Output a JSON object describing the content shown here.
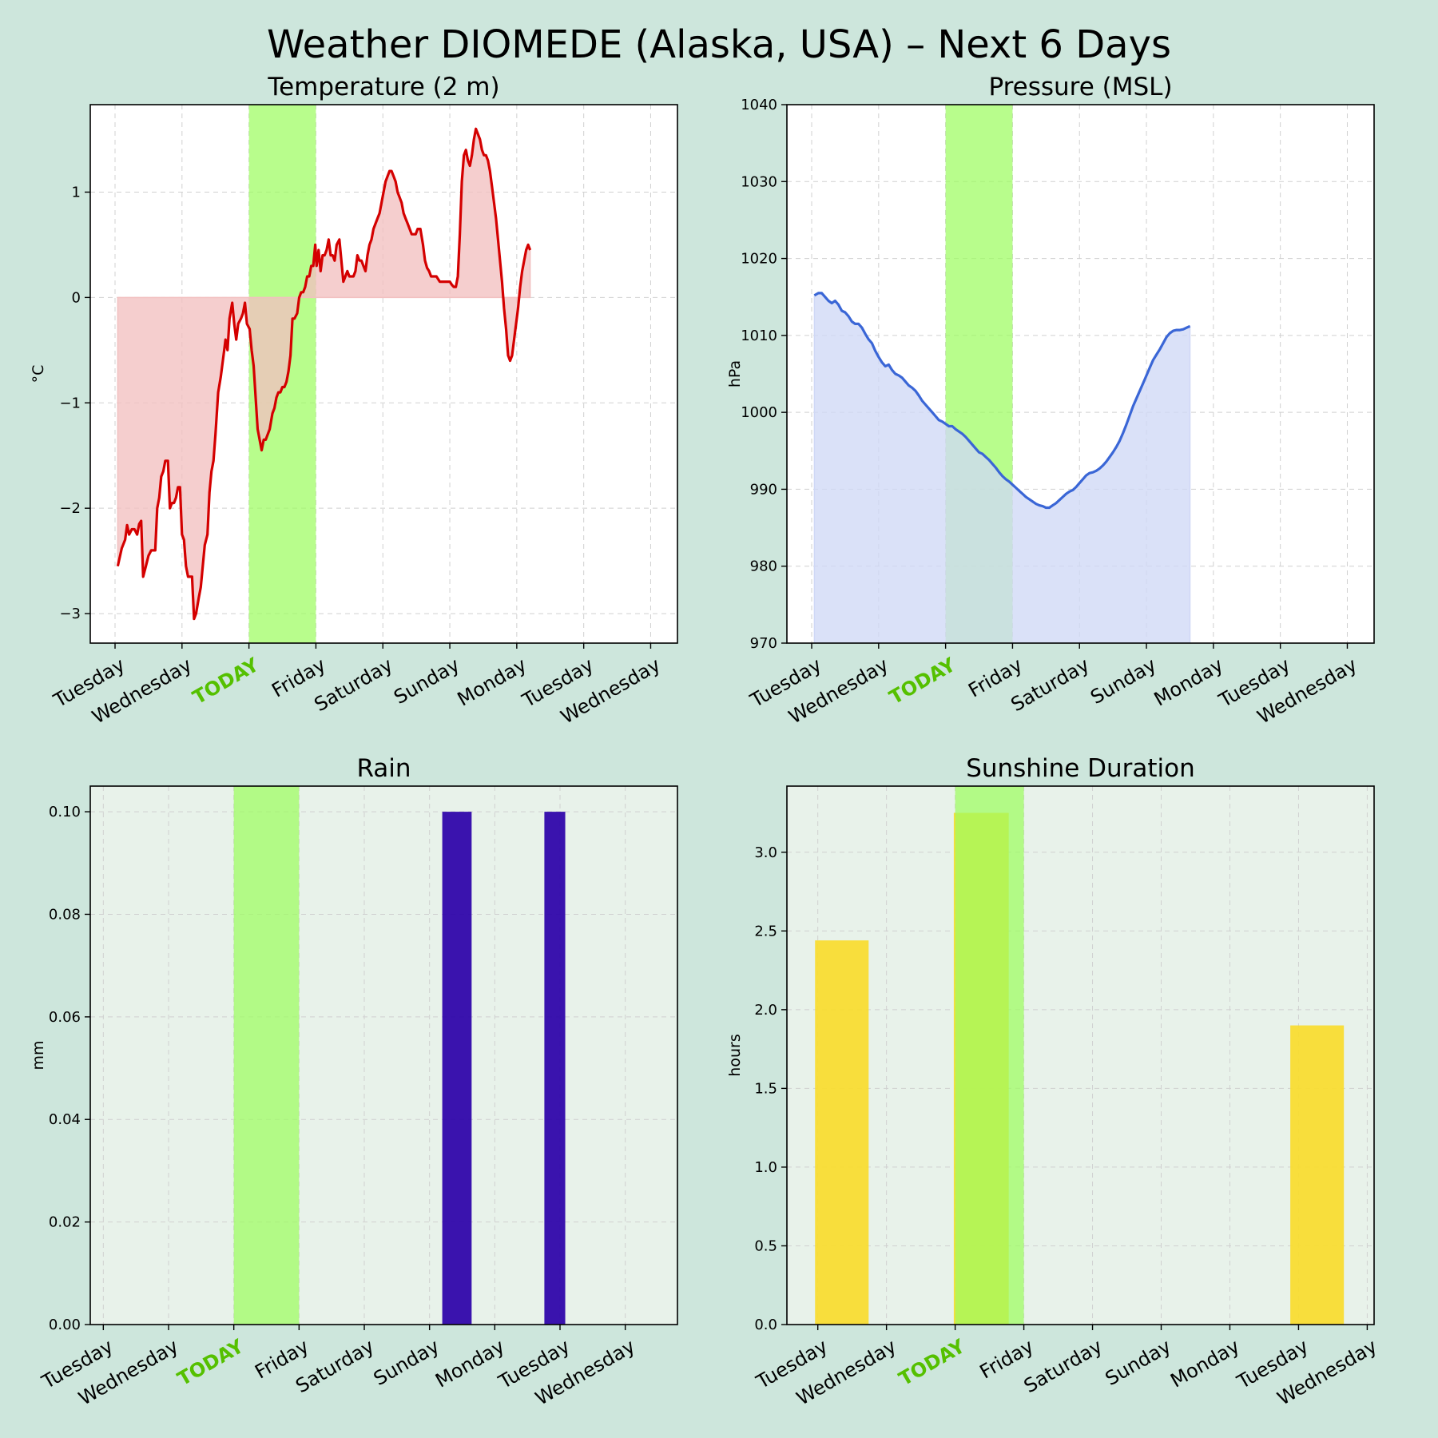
{
  "title": "Weather DIOMEDE (Alaska, USA) – Next 6 Days",
  "chart_data": [
    {
      "type": "line",
      "title": "Temperature (2 m)",
      "ylabel": "°C",
      "xlim": [
        -0.37,
        8.4
      ],
      "ylim": [
        -3.28,
        1.83
      ],
      "yticks": [
        -3,
        -2,
        -1,
        0,
        1
      ],
      "ytick_labels": [
        "−3",
        "−2",
        "−1",
        "0",
        "1"
      ],
      "day_ticks": [
        "Tuesday",
        "Wednesday",
        "TODAY",
        "Friday",
        "Saturday",
        "Sunday",
        "Monday",
        "Tuesday",
        "Wednesday"
      ],
      "today_span": [
        2,
        3
      ],
      "fill_to_zero": true,
      "color": "#d40000",
      "fill_color": "#f2c0c0",
      "background": "#ffffff",
      "points": [
        [
          0.04,
          -2.55
        ],
        [
          0.1,
          -2.38
        ],
        [
          0.15,
          -2.3
        ],
        [
          0.18,
          -2.16
        ],
        [
          0.21,
          -2.25
        ],
        [
          0.25,
          -2.2
        ],
        [
          0.29,
          -2.2
        ],
        [
          0.33,
          -2.25
        ],
        [
          0.36,
          -2.15
        ],
        [
          0.39,
          -2.12
        ],
        [
          0.42,
          -2.65
        ],
        [
          0.46,
          -2.55
        ],
        [
          0.5,
          -2.45
        ],
        [
          0.54,
          -2.4
        ],
        [
          0.6,
          -2.4
        ],
        [
          0.63,
          -2.0
        ],
        [
          0.66,
          -1.9
        ],
        [
          0.69,
          -1.7
        ],
        [
          0.72,
          -1.65
        ],
        [
          0.75,
          -1.55
        ],
        [
          0.79,
          -1.55
        ],
        [
          0.82,
          -2.0
        ],
        [
          0.85,
          -1.95
        ],
        [
          0.88,
          -1.95
        ],
        [
          0.91,
          -1.9
        ],
        [
          0.94,
          -1.8
        ],
        [
          0.97,
          -1.8
        ],
        [
          1.0,
          -2.25
        ],
        [
          1.03,
          -2.3
        ],
        [
          1.06,
          -2.55
        ],
        [
          1.09,
          -2.65
        ],
        [
          1.12,
          -2.65
        ],
        [
          1.15,
          -2.65
        ],
        [
          1.18,
          -3.05
        ],
        [
          1.21,
          -3.0
        ],
        [
          1.25,
          -2.85
        ],
        [
          1.28,
          -2.75
        ],
        [
          1.31,
          -2.55
        ],
        [
          1.34,
          -2.35
        ],
        [
          1.38,
          -2.25
        ],
        [
          1.41,
          -1.85
        ],
        [
          1.44,
          -1.65
        ],
        [
          1.47,
          -1.55
        ],
        [
          1.5,
          -1.3
        ],
        [
          1.54,
          -0.9
        ],
        [
          1.58,
          -0.75
        ],
        [
          1.62,
          -0.55
        ],
        [
          1.65,
          -0.4
        ],
        [
          1.68,
          -0.5
        ],
        [
          1.71,
          -0.2
        ],
        [
          1.75,
          -0.05
        ],
        [
          1.78,
          -0.25
        ],
        [
          1.81,
          -0.4
        ],
        [
          1.84,
          -0.25
        ],
        [
          1.88,
          -0.2
        ],
        [
          1.91,
          -0.15
        ],
        [
          1.94,
          -0.05
        ],
        [
          1.97,
          -0.25
        ],
        [
          2.01,
          -0.3
        ],
        [
          2.04,
          -0.5
        ],
        [
          2.07,
          -0.65
        ],
        [
          2.1,
          -0.95
        ],
        [
          2.13,
          -1.25
        ],
        [
          2.16,
          -1.35
        ],
        [
          2.19,
          -1.45
        ],
        [
          2.22,
          -1.35
        ],
        [
          2.25,
          -1.35
        ],
        [
          2.28,
          -1.3
        ],
        [
          2.31,
          -1.25
        ],
        [
          2.35,
          -1.1
        ],
        [
          2.38,
          -1.05
        ],
        [
          2.41,
          -0.95
        ],
        [
          2.44,
          -0.9
        ],
        [
          2.47,
          -0.9
        ],
        [
          2.5,
          -0.85
        ],
        [
          2.53,
          -0.85
        ],
        [
          2.56,
          -0.8
        ],
        [
          2.59,
          -0.7
        ],
        [
          2.62,
          -0.55
        ],
        [
          2.65,
          -0.2
        ],
        [
          2.68,
          -0.2
        ],
        [
          2.72,
          -0.15
        ],
        [
          2.75,
          0.0
        ],
        [
          2.78,
          0.05
        ],
        [
          2.81,
          0.05
        ],
        [
          2.84,
          0.1
        ],
        [
          2.87,
          0.2
        ],
        [
          2.9,
          0.2
        ],
        [
          2.93,
          0.3
        ],
        [
          2.96,
          0.3
        ],
        [
          2.99,
          0.5
        ],
        [
          3.01,
          0.3
        ],
        [
          3.04,
          0.45
        ],
        [
          3.07,
          0.25
        ],
        [
          3.1,
          0.4
        ],
        [
          3.13,
          0.4
        ],
        [
          3.16,
          0.45
        ],
        [
          3.19,
          0.55
        ],
        [
          3.22,
          0.4
        ],
        [
          3.25,
          0.4
        ],
        [
          3.28,
          0.35
        ],
        [
          3.31,
          0.5
        ],
        [
          3.35,
          0.55
        ],
        [
          3.38,
          0.35
        ],
        [
          3.41,
          0.15
        ],
        [
          3.44,
          0.2
        ],
        [
          3.47,
          0.25
        ],
        [
          3.5,
          0.2
        ],
        [
          3.53,
          0.2
        ],
        [
          3.56,
          0.2
        ],
        [
          3.59,
          0.25
        ],
        [
          3.62,
          0.4
        ],
        [
          3.65,
          0.35
        ],
        [
          3.68,
          0.35
        ],
        [
          3.71,
          0.3
        ],
        [
          3.74,
          0.25
        ],
        [
          3.77,
          0.4
        ],
        [
          3.8,
          0.5
        ],
        [
          3.83,
          0.55
        ],
        [
          3.86,
          0.65
        ],
        [
          3.89,
          0.7
        ],
        [
          3.92,
          0.75
        ],
        [
          3.95,
          0.8
        ],
        [
          3.98,
          0.9
        ],
        [
          4.01,
          1.0
        ],
        [
          4.04,
          1.1
        ],
        [
          4.07,
          1.15
        ],
        [
          4.1,
          1.2
        ],
        [
          4.13,
          1.2
        ],
        [
          4.16,
          1.15
        ],
        [
          4.19,
          1.1
        ],
        [
          4.22,
          1.0
        ],
        [
          4.25,
          0.95
        ],
        [
          4.28,
          0.9
        ],
        [
          4.31,
          0.8
        ],
        [
          4.34,
          0.75
        ],
        [
          4.37,
          0.7
        ],
        [
          4.4,
          0.65
        ],
        [
          4.43,
          0.6
        ],
        [
          4.46,
          0.6
        ],
        [
          4.49,
          0.6
        ],
        [
          4.52,
          0.65
        ],
        [
          4.56,
          0.65
        ],
        [
          4.6,
          0.5
        ],
        [
          4.63,
          0.35
        ],
        [
          4.66,
          0.28
        ],
        [
          4.69,
          0.25
        ],
        [
          4.72,
          0.2
        ],
        [
          4.75,
          0.2
        ],
        [
          4.8,
          0.2
        ],
        [
          4.85,
          0.15
        ],
        [
          4.9,
          0.15
        ],
        [
          4.95,
          0.15
        ],
        [
          5.0,
          0.15
        ],
        [
          5.03,
          0.12
        ],
        [
          5.06,
          0.1
        ],
        [
          5.09,
          0.1
        ],
        [
          5.12,
          0.2
        ],
        [
          5.15,
          0.6
        ],
        [
          5.18,
          1.1
        ],
        [
          5.21,
          1.35
        ],
        [
          5.24,
          1.4
        ],
        [
          5.27,
          1.3
        ],
        [
          5.3,
          1.25
        ],
        [
          5.33,
          1.35
        ],
        [
          5.36,
          1.5
        ],
        [
          5.39,
          1.6
        ],
        [
          5.42,
          1.55
        ],
        [
          5.45,
          1.5
        ],
        [
          5.48,
          1.4
        ],
        [
          5.51,
          1.35
        ],
        [
          5.54,
          1.35
        ],
        [
          5.57,
          1.3
        ],
        [
          5.6,
          1.2
        ],
        [
          5.63,
          1.05
        ],
        [
          5.66,
          0.9
        ],
        [
          5.69,
          0.75
        ],
        [
          5.72,
          0.55
        ],
        [
          5.75,
          0.35
        ],
        [
          5.78,
          0.15
        ],
        [
          5.81,
          -0.1
        ],
        [
          5.84,
          -0.3
        ],
        [
          5.87,
          -0.55
        ],
        [
          5.9,
          -0.6
        ],
        [
          5.93,
          -0.55
        ],
        [
          5.96,
          -0.4
        ],
        [
          5.99,
          -0.25
        ],
        [
          6.02,
          -0.1
        ],
        [
          6.05,
          0.1
        ],
        [
          6.08,
          0.25
        ],
        [
          6.11,
          0.35
        ],
        [
          6.14,
          0.45
        ],
        [
          6.17,
          0.5
        ],
        [
          6.2,
          0.45
        ]
      ]
    },
    {
      "type": "line",
      "title": "Pressure (MSL)",
      "ylabel": "hPa",
      "xlim": [
        -0.37,
        8.4
      ],
      "ylim": [
        970,
        1040
      ],
      "yticks": [
        970,
        980,
        990,
        1000,
        1010,
        1020,
        1030,
        1040
      ],
      "ytick_labels": [
        "970",
        "980",
        "990",
        "1000",
        "1010",
        "1020",
        "1030",
        "1040"
      ],
      "day_ticks": [
        "Tuesday",
        "Wednesday",
        "TODAY",
        "Friday",
        "Saturday",
        "Sunday",
        "Monday",
        "Tuesday",
        "Wednesday"
      ],
      "today_span": [
        2,
        3
      ],
      "fill_to_bottom": true,
      "color": "#3a66d6",
      "fill_color": "#cfd8f6",
      "background": "#ffffff",
      "points": [
        [
          0.04,
          1015.2
        ],
        [
          0.1,
          1015.5
        ],
        [
          0.15,
          1015.5
        ],
        [
          0.2,
          1015.0
        ],
        [
          0.25,
          1014.5
        ],
        [
          0.3,
          1014.2
        ],
        [
          0.35,
          1014.5
        ],
        [
          0.4,
          1014.0
        ],
        [
          0.45,
          1013.2
        ],
        [
          0.5,
          1013.0
        ],
        [
          0.55,
          1012.5
        ],
        [
          0.6,
          1011.8
        ],
        [
          0.65,
          1011.5
        ],
        [
          0.7,
          1011.5
        ],
        [
          0.75,
          1011.0
        ],
        [
          0.8,
          1010.2
        ],
        [
          0.85,
          1009.5
        ],
        [
          0.9,
          1009.0
        ],
        [
          0.95,
          1008.0
        ],
        [
          1.0,
          1007.2
        ],
        [
          1.05,
          1006.5
        ],
        [
          1.1,
          1006.0
        ],
        [
          1.15,
          1006.2
        ],
        [
          1.2,
          1005.5
        ],
        [
          1.25,
          1005.0
        ],
        [
          1.3,
          1004.8
        ],
        [
          1.35,
          1004.5
        ],
        [
          1.4,
          1004.0
        ],
        [
          1.45,
          1003.5
        ],
        [
          1.5,
          1003.2
        ],
        [
          1.55,
          1002.8
        ],
        [
          1.6,
          1002.2
        ],
        [
          1.65,
          1001.5
        ],
        [
          1.7,
          1001.0
        ],
        [
          1.75,
          1000.5
        ],
        [
          1.8,
          1000.0
        ],
        [
          1.85,
          999.5
        ],
        [
          1.9,
          999.0
        ],
        [
          1.95,
          998.8
        ],
        [
          2.0,
          998.5
        ],
        [
          2.05,
          998.2
        ],
        [
          2.1,
          998.2
        ],
        [
          2.15,
          997.8
        ],
        [
          2.2,
          997.5
        ],
        [
          2.25,
          997.2
        ],
        [
          2.3,
          996.8
        ],
        [
          2.35,
          996.3
        ],
        [
          2.4,
          995.8
        ],
        [
          2.45,
          995.3
        ],
        [
          2.5,
          994.8
        ],
        [
          2.55,
          994.6
        ],
        [
          2.6,
          994.2
        ],
        [
          2.65,
          993.8
        ],
        [
          2.7,
          993.3
        ],
        [
          2.75,
          992.8
        ],
        [
          2.8,
          992.2
        ],
        [
          2.85,
          991.7
        ],
        [
          2.9,
          991.3
        ],
        [
          2.95,
          991.0
        ],
        [
          3.0,
          990.6
        ],
        [
          3.05,
          990.2
        ],
        [
          3.1,
          989.8
        ],
        [
          3.15,
          989.4
        ],
        [
          3.2,
          989.0
        ],
        [
          3.25,
          988.7
        ],
        [
          3.3,
          988.4
        ],
        [
          3.35,
          988.1
        ],
        [
          3.4,
          987.9
        ],
        [
          3.45,
          987.8
        ],
        [
          3.5,
          987.6
        ],
        [
          3.55,
          987.6
        ],
        [
          3.6,
          987.9
        ],
        [
          3.65,
          988.2
        ],
        [
          3.7,
          988.6
        ],
        [
          3.75,
          989.0
        ],
        [
          3.8,
          989.4
        ],
        [
          3.85,
          989.7
        ],
        [
          3.9,
          989.9
        ],
        [
          3.95,
          990.3
        ],
        [
          4.0,
          990.8
        ],
        [
          4.05,
          991.3
        ],
        [
          4.1,
          991.8
        ],
        [
          4.15,
          992.1
        ],
        [
          4.2,
          992.2
        ],
        [
          4.25,
          992.4
        ],
        [
          4.3,
          992.7
        ],
        [
          4.35,
          993.1
        ],
        [
          4.4,
          993.6
        ],
        [
          4.45,
          994.2
        ],
        [
          4.5,
          994.8
        ],
        [
          4.55,
          995.5
        ],
        [
          4.6,
          996.3
        ],
        [
          4.65,
          997.3
        ],
        [
          4.7,
          998.4
        ],
        [
          4.75,
          999.6
        ],
        [
          4.8,
          1000.8
        ],
        [
          4.85,
          1001.8
        ],
        [
          4.9,
          1002.8
        ],
        [
          4.95,
          1003.8
        ],
        [
          5.0,
          1004.8
        ],
        [
          5.05,
          1005.8
        ],
        [
          5.1,
          1006.8
        ],
        [
          5.15,
          1007.5
        ],
        [
          5.2,
          1008.2
        ],
        [
          5.25,
          1009.0
        ],
        [
          5.3,
          1009.8
        ],
        [
          5.35,
          1010.3
        ],
        [
          5.4,
          1010.6
        ],
        [
          5.45,
          1010.7
        ],
        [
          5.5,
          1010.7
        ],
        [
          5.55,
          1010.8
        ],
        [
          5.6,
          1011.0
        ],
        [
          5.65,
          1011.2
        ]
      ]
    },
    {
      "type": "bar",
      "title": "Rain",
      "ylabel": "mm",
      "xlim": [
        -0.2,
        8.8
      ],
      "ylim": [
        0,
        0.105
      ],
      "yticks": [
        0,
        0.02,
        0.04,
        0.06,
        0.08,
        0.1
      ],
      "ytick_labels": [
        "0.00",
        "0.02",
        "0.04",
        "0.06",
        "0.08",
        "0.10"
      ],
      "day_ticks": [
        "Tuesday",
        "Wednesday",
        "TODAY",
        "Friday",
        "Saturday",
        "Sunday",
        "Monday",
        "Tuesday",
        "Wednesday"
      ],
      "today_span": [
        2,
        3
      ],
      "color": "#2a00a8",
      "background": "#e8f2ea",
      "bars": [
        [
          5.42,
          0.45,
          0.1
        ],
        [
          6.92,
          0.32,
          0.1
        ]
      ]
    },
    {
      "type": "bar",
      "title": "Sunshine Duration",
      "ylabel": "hours",
      "xlim": [
        -0.45,
        8.1
      ],
      "ylim": [
        0,
        3.42
      ],
      "yticks": [
        0,
        0.5,
        1.0,
        1.5,
        2.0,
        2.5,
        3.0
      ],
      "ytick_labels": [
        "0.0",
        "0.5",
        "1.0",
        "1.5",
        "2.0",
        "2.5",
        "3.0"
      ],
      "day_ticks": [
        "Tuesday",
        "Wednesday",
        "TODAY",
        "Friday",
        "Saturday",
        "Sunday",
        "Monday",
        "Tuesday",
        "Wednesday"
      ],
      "today_span": [
        2,
        3
      ],
      "color": "#f9dc2c",
      "background": "#e8f2ea",
      "bars": [
        [
          0.35,
          0.78,
          2.44
        ],
        [
          2.38,
          0.8,
          3.25
        ],
        [
          7.27,
          0.78,
          1.9
        ]
      ]
    }
  ]
}
